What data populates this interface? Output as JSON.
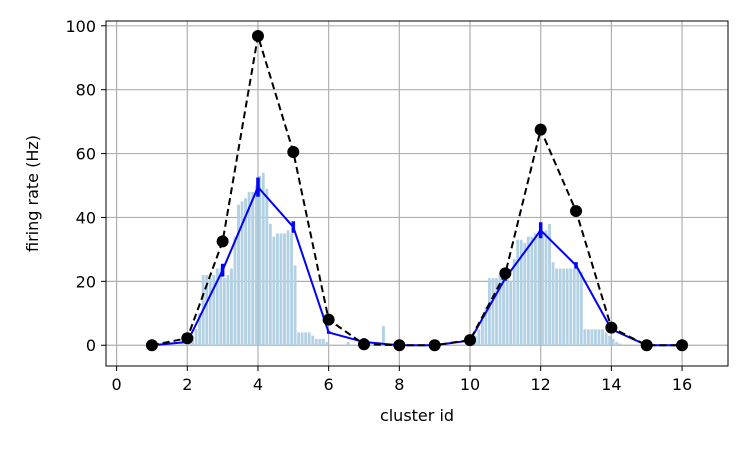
{
  "chart_data": {
    "type": "line",
    "title": "",
    "xlabel": "cluster id",
    "ylabel": "firing rate (Hz)",
    "xlim": [
      -0.3,
      17.3
    ],
    "ylim": [
      -6.5,
      101.5
    ],
    "xticks": [
      0,
      2,
      4,
      6,
      8,
      10,
      12,
      14,
      16
    ],
    "yticks": [
      0,
      20,
      40,
      60,
      80,
      100
    ],
    "grid": true,
    "legend": "none",
    "series": [
      {
        "style": "dashed-black-with-markers",
        "color": "#000000",
        "x": [
          1,
          2,
          3,
          4,
          5,
          6,
          7,
          8,
          9,
          10,
          11,
          12,
          13,
          14,
          15,
          16
        ],
        "values": [
          0,
          2.2,
          32.5,
          96.8,
          60.5,
          8,
          0.3,
          0,
          0,
          1.6,
          22.5,
          67.5,
          42,
          5.5,
          0,
          0
        ]
      },
      {
        "style": "solid-blue-with-errorbars",
        "color": "#0000ff",
        "x": [
          1,
          2,
          3,
          4,
          5,
          6,
          7,
          8,
          9,
          10,
          11,
          12,
          13,
          14,
          15,
          16
        ],
        "values": [
          0,
          1,
          23.5,
          49.5,
          37,
          4,
          1,
          0,
          0,
          1.5,
          21,
          36,
          25,
          5,
          0,
          0
        ],
        "errors": [
          0,
          0.5,
          2,
          3,
          1.8,
          0.4,
          1.2,
          0,
          0,
          0.4,
          0.8,
          2.5,
          1,
          0.4,
          0,
          0
        ]
      },
      {
        "style": "histogram-bars",
        "color": "#b3d1e5",
        "bar_width": 0.08,
        "x": [
          2.05,
          2.15,
          2.25,
          2.35,
          2.45,
          2.55,
          2.65,
          2.75,
          2.85,
          2.95,
          3.05,
          3.15,
          3.25,
          3.35,
          3.45,
          3.55,
          3.65,
          3.75,
          3.85,
          3.95,
          4.05,
          4.15,
          4.25,
          4.35,
          4.45,
          4.55,
          4.65,
          4.75,
          4.85,
          4.95,
          5.05,
          5.15,
          5.25,
          5.35,
          5.45,
          5.55,
          5.65,
          5.75,
          5.85,
          5.95,
          6.55,
          7.05,
          7.15,
          7.55,
          10.05,
          10.15,
          10.25,
          10.35,
          10.45,
          10.55,
          10.65,
          10.75,
          10.85,
          10.95,
          11.05,
          11.15,
          11.25,
          11.35,
          11.45,
          11.55,
          11.65,
          11.75,
          11.85,
          11.95,
          12.05,
          12.15,
          12.25,
          12.35,
          12.45,
          12.55,
          12.65,
          12.75,
          12.85,
          12.95,
          13.05,
          13.15,
          13.25,
          13.35,
          13.45,
          13.55,
          13.65,
          13.75,
          13.85,
          13.95,
          14.05,
          14.15,
          14.25
        ],
        "values": [
          2,
          3,
          5,
          10,
          22,
          22,
          21,
          22,
          24,
          24,
          21,
          22,
          24,
          34,
          44,
          45,
          46,
          48,
          48,
          50,
          53,
          54,
          49,
          38,
          34,
          35,
          35,
          35,
          36,
          35,
          25,
          4,
          4,
          4,
          4,
          3,
          2,
          2,
          2,
          1,
          1,
          2,
          1,
          6,
          2,
          3,
          5,
          8,
          12,
          21,
          21,
          21,
          22,
          24,
          24,
          20,
          27,
          33,
          33,
          32,
          34,
          34,
          35,
          36,
          35,
          36,
          38,
          26,
          24,
          24,
          24,
          24,
          24,
          24,
          24,
          23,
          5,
          5,
          5,
          5,
          5,
          5,
          4,
          3,
          2,
          1,
          0.5
        ]
      }
    ]
  }
}
